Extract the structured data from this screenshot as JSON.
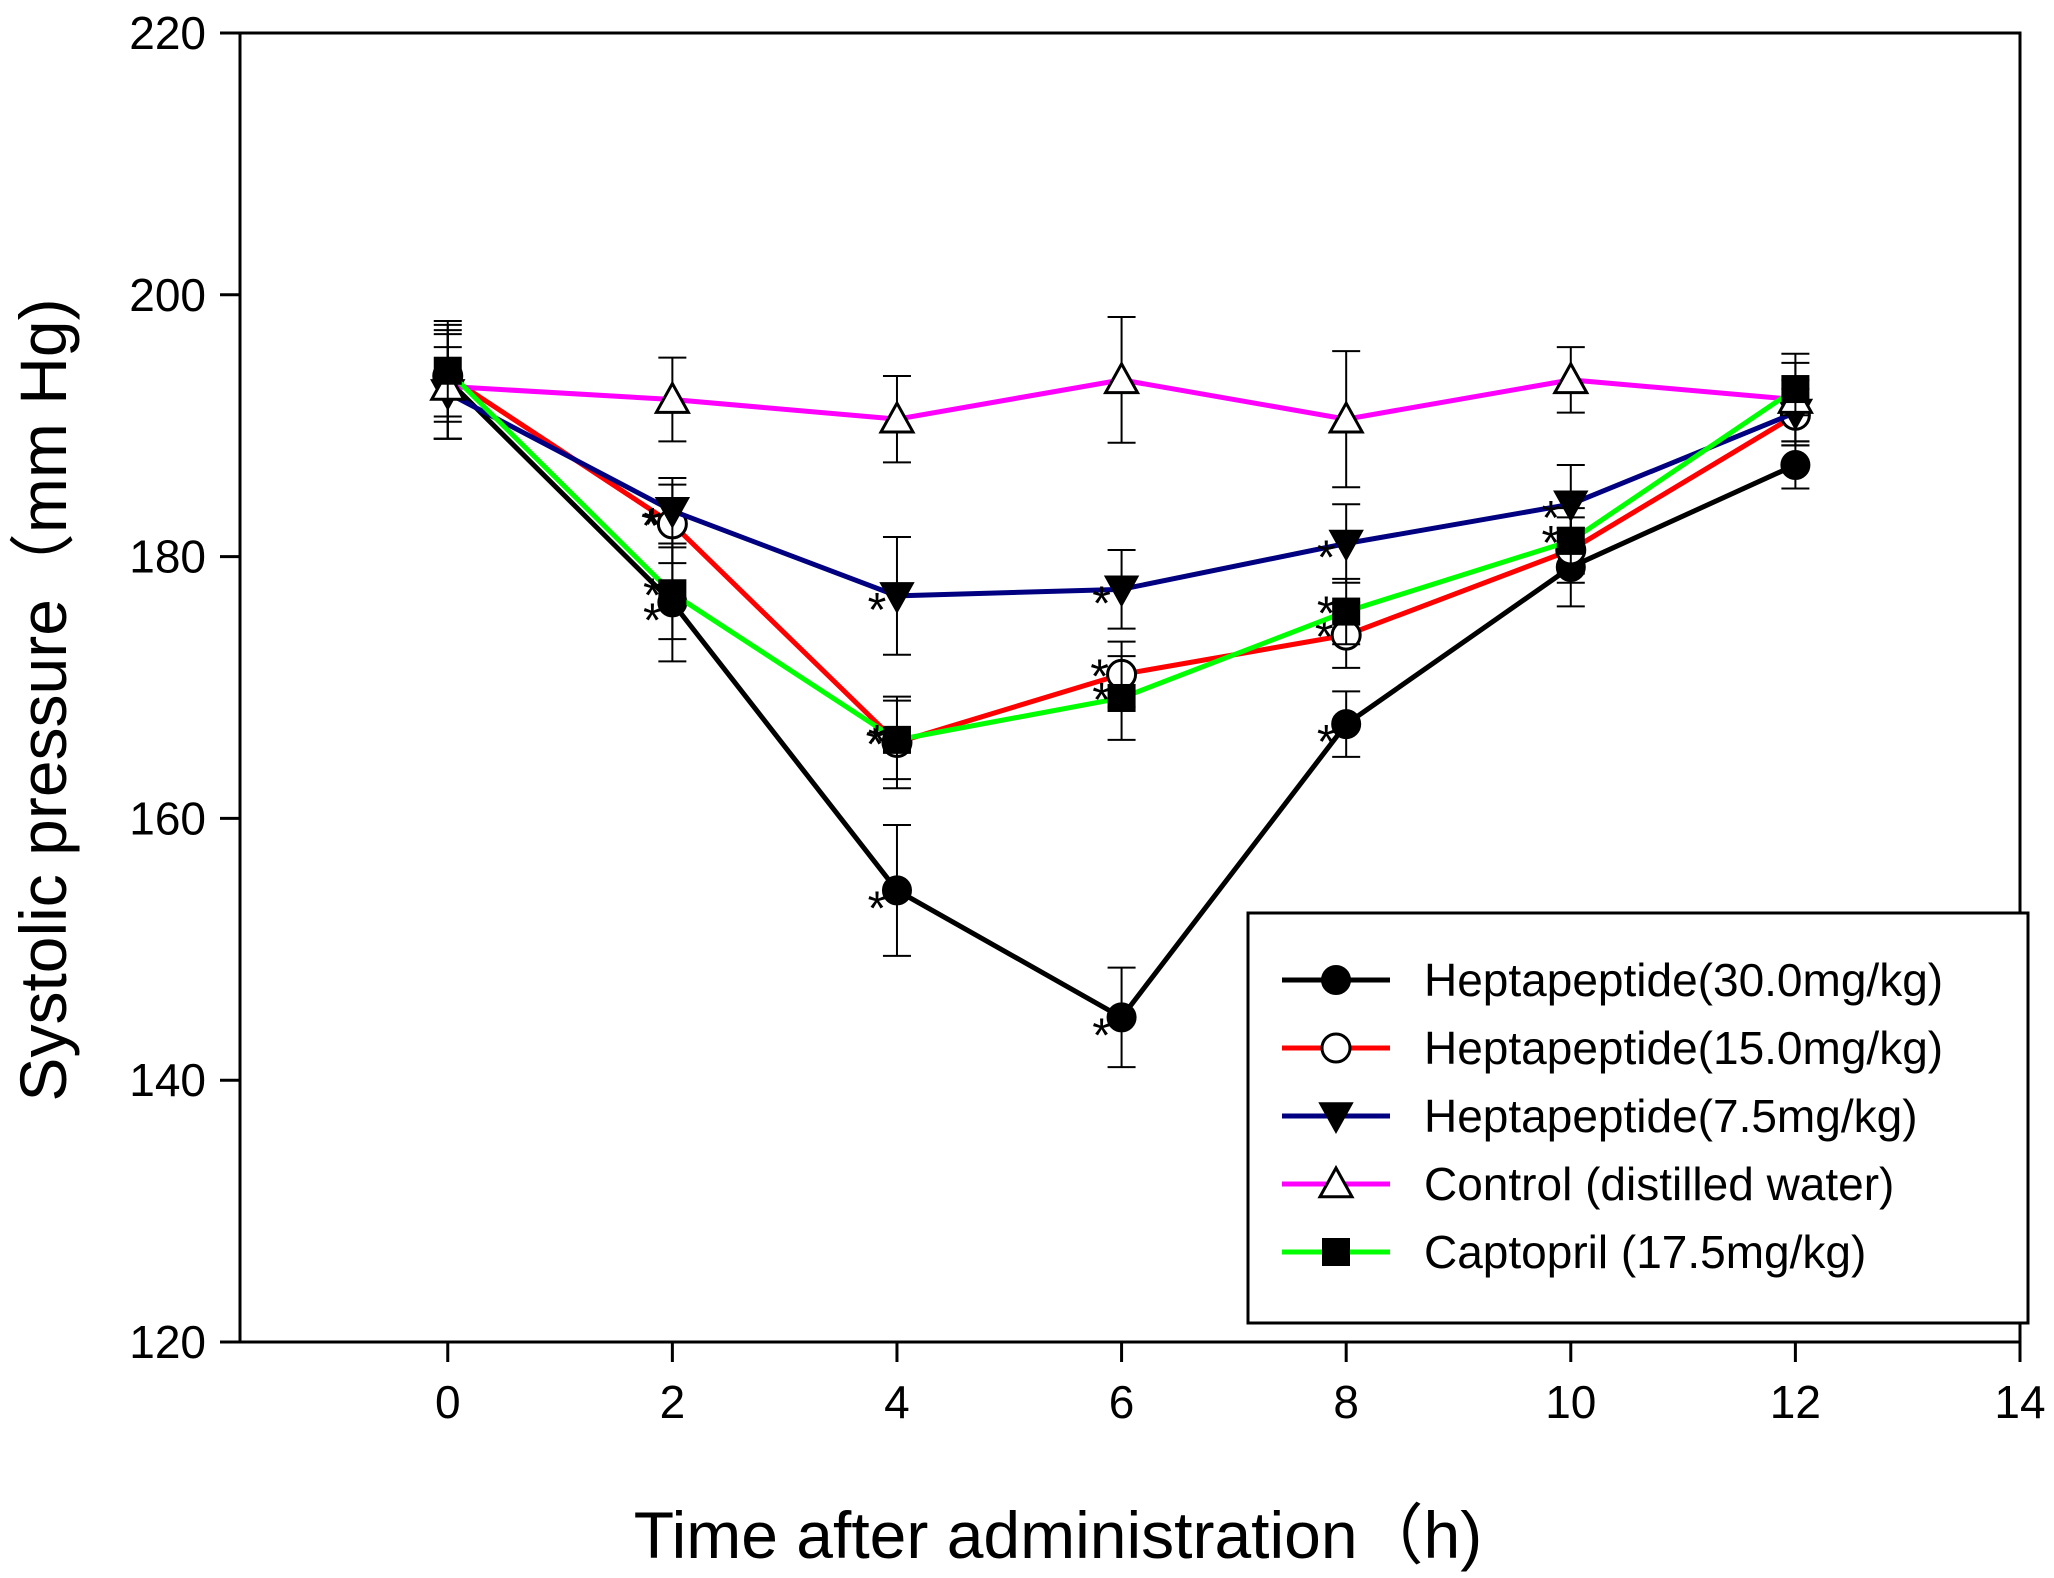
{
  "chart_data": {
    "type": "line",
    "title": "",
    "xlabel": "Time after administration（h)",
    "ylabel": "Systolic pressure（mm Hg)",
    "xlim": [
      -1.85,
      14
    ],
    "ylim": [
      120,
      220
    ],
    "xticks": [
      0,
      2,
      4,
      6,
      8,
      10,
      12,
      14
    ],
    "yticks": [
      120,
      140,
      160,
      180,
      200,
      220
    ],
    "x": [
      0,
      2,
      4,
      6,
      8,
      10,
      12
    ],
    "legend_position": "lower-right",
    "significance_marker": "*",
    "series": [
      {
        "name": "Heptapeptide(30.0mg/kg)",
        "color": "#000000",
        "marker": "filled-circle",
        "values": [
          193.5,
          176.5,
          154.5,
          144.8,
          167.2,
          179.2,
          187.0
        ],
        "errors": [
          4.5,
          4.5,
          5.0,
          3.8,
          2.5,
          3.0,
          1.8
        ],
        "significant": [
          false,
          true,
          true,
          true,
          true,
          false,
          false
        ]
      },
      {
        "name": "Heptapeptide(15.0mg/kg)",
        "color": "#ff0000",
        "marker": "open-circle",
        "values": [
          193.8,
          182.5,
          165.8,
          171.0,
          174.0,
          180.5,
          190.8
        ],
        "errors": [
          3.5,
          3.0,
          3.5,
          2.5,
          2.5,
          2.5,
          2.0
        ],
        "significant": [
          false,
          true,
          true,
          true,
          true,
          false,
          false
        ]
      },
      {
        "name": "Heptapeptide(7.5mg/kg)",
        "color": "#000080",
        "marker": "filled-triangle-down",
        "values": [
          192.5,
          183.5,
          177.0,
          177.5,
          181.0,
          184.0,
          191.0
        ],
        "errors": [
          3.5,
          2.5,
          4.5,
          3.0,
          3.0,
          3.0,
          2.5
        ],
        "significant": [
          false,
          true,
          true,
          true,
          true,
          true,
          false
        ]
      },
      {
        "name": "Control (distilled water)",
        "color": "#ff00ff",
        "marker": "open-triangle-up",
        "values": [
          193.0,
          192.0,
          190.5,
          193.5,
          190.5,
          193.5,
          192.0
        ],
        "errors": [
          4.0,
          3.2,
          3.3,
          4.8,
          5.2,
          2.5,
          3.5
        ],
        "significant": [
          false,
          false,
          false,
          false,
          false,
          false,
          false
        ]
      },
      {
        "name": "Captopril (17.5mg/kg)",
        "color": "#00ff00",
        "marker": "filled-square",
        "values": [
          194.2,
          177.2,
          166.0,
          169.2,
          175.8,
          181.2,
          192.8
        ],
        "errors": [
          3.5,
          3.5,
          3.0,
          3.2,
          2.5,
          2.5,
          2.0
        ],
        "significant": [
          false,
          true,
          true,
          true,
          true,
          true,
          false
        ]
      }
    ]
  }
}
